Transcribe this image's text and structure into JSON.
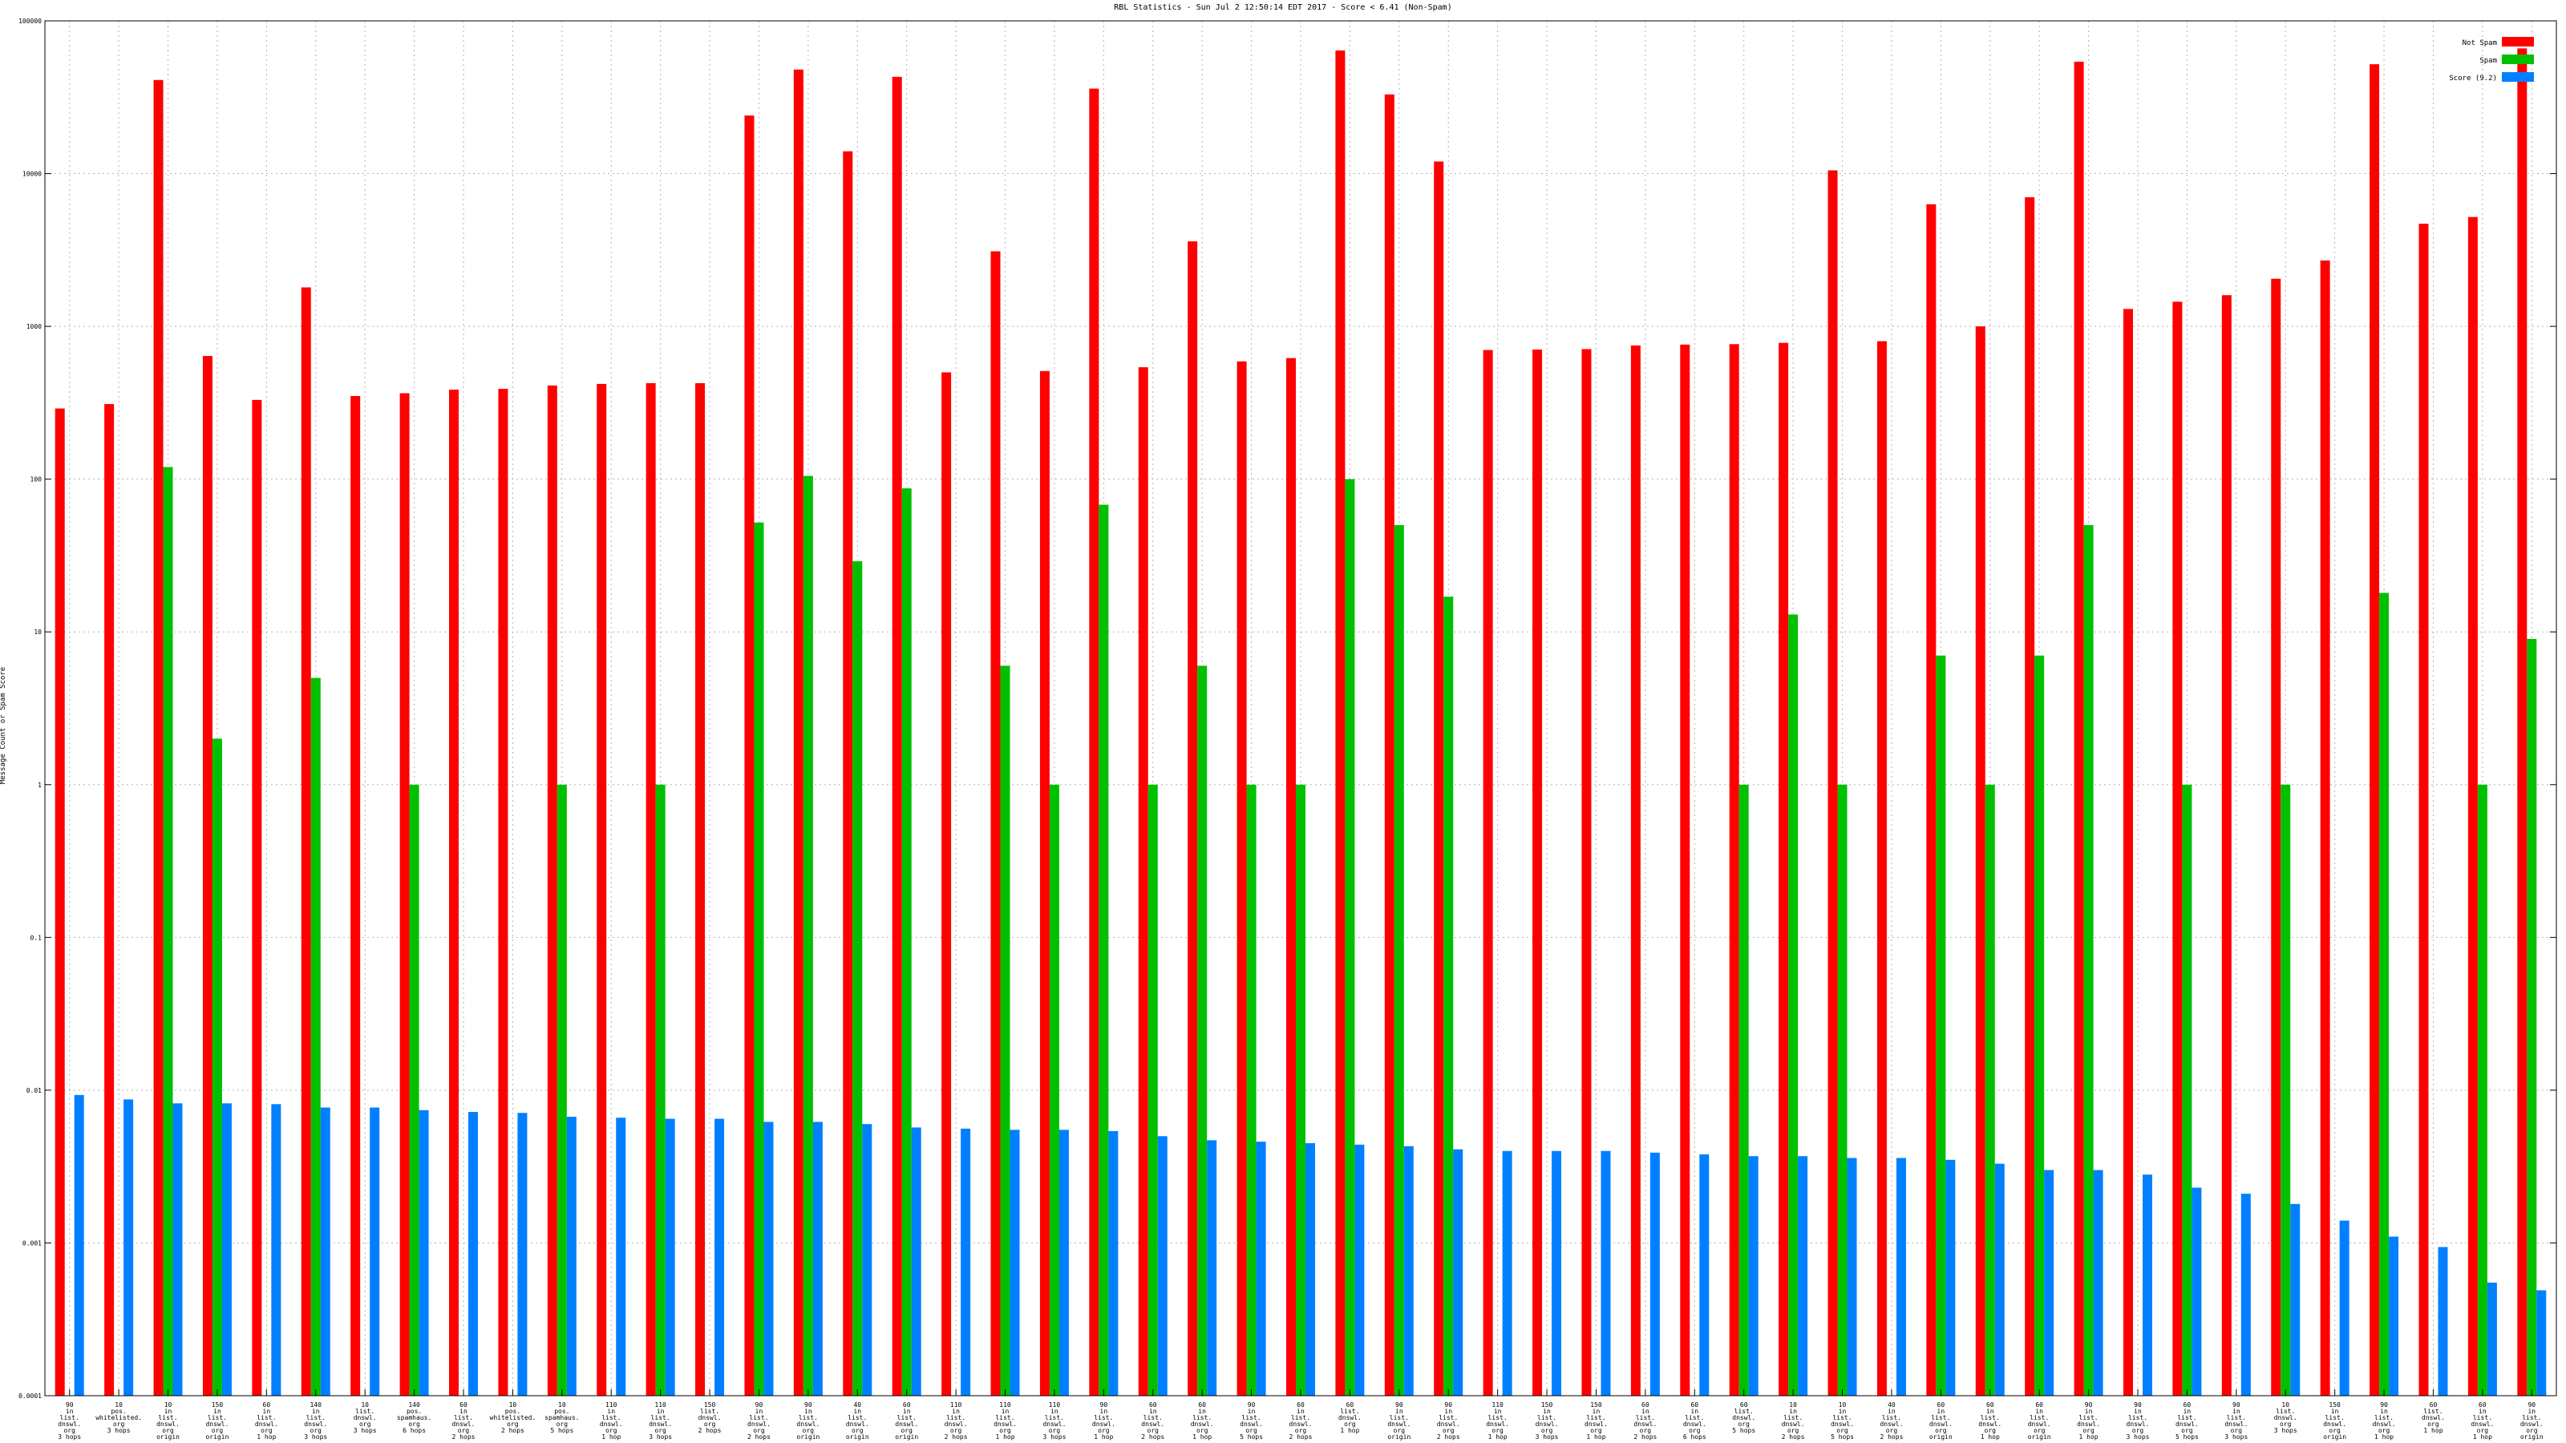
{
  "chart_data": {
    "type": "bar",
    "title": "RBL Statistics - Sun Jul  2 12:50:14 EDT 2017 - Score < 6.41 (Non-Spam)",
    "ylabel": "Message Count or Spam Score",
    "yscale": "log",
    "ylim": [
      0.0001,
      100000
    ],
    "ytick_labels": [
      "0.0001",
      "0.001",
      "0.01",
      "0.1",
      "1",
      "10",
      "100",
      "1000",
      "10000",
      "100000"
    ],
    "grid": true,
    "legend_position": "top-right",
    "categories": [
      [
        "90",
        "in",
        "list.",
        "dnswl.",
        "org",
        "3 hops"
      ],
      [
        "10",
        "pos.",
        "whitelisted.",
        "org",
        "3 hops"
      ],
      [
        "10",
        "in",
        "list.",
        "dnswl.",
        "org",
        "origin"
      ],
      [
        "150",
        "in",
        "list.",
        "dnswl.",
        "org",
        "origin"
      ],
      [
        "60",
        "in",
        "list.",
        "dnswl.",
        "org",
        "1 hop"
      ],
      [
        "140",
        "in",
        "list.",
        "dnswl.",
        "org",
        "3 hops"
      ],
      [
        "10",
        "list.",
        "dnswl.",
        "org",
        "3 hops"
      ],
      [
        "140",
        "pos.",
        "spamhaus.",
        "org",
        "6 hops"
      ],
      [
        "60",
        "in",
        "list.",
        "dnswl.",
        "org",
        "2 hops"
      ],
      [
        "10",
        "pos.",
        "whitelisted.",
        "org",
        "2 hops"
      ],
      [
        "10",
        "pos.",
        "spamhaus.",
        "org",
        "5 hops"
      ],
      [
        "110",
        "in",
        "list.",
        "dnswl.",
        "org",
        "1 hop"
      ],
      [
        "110",
        "in",
        "list.",
        "dnswl.",
        "org",
        "3 hops"
      ],
      [
        "150",
        "list.",
        "dnswl.",
        "org",
        "2 hops"
      ],
      [
        "90",
        "in",
        "list.",
        "dnswl.",
        "org",
        "2 hops"
      ],
      [
        "90",
        "in",
        "list.",
        "dnswl.",
        "org",
        "origin"
      ],
      [
        "40",
        "in",
        "list.",
        "dnswl.",
        "org",
        "origin"
      ],
      [
        "60",
        "in",
        "list.",
        "dnswl.",
        "org",
        "origin"
      ],
      [
        "110",
        "in",
        "list.",
        "dnswl.",
        "org",
        "2 hops"
      ],
      [
        "110",
        "in",
        "list.",
        "dnswl.",
        "org",
        "1 hop"
      ],
      [
        "110",
        "in",
        "list.",
        "dnswl.",
        "org",
        "3 hops"
      ],
      [
        "90",
        "in",
        "list.",
        "dnswl.",
        "org",
        "1 hop"
      ],
      [
        "60",
        "in",
        "list.",
        "dnswl.",
        "org",
        "2 hops"
      ],
      [
        "60",
        "in",
        "list.",
        "dnswl.",
        "org",
        "1 hop"
      ],
      [
        "90",
        "in",
        "list.",
        "dnswl.",
        "org",
        "5 hops"
      ],
      [
        "60",
        "in",
        "list.",
        "dnswl.",
        "org",
        "2 hops"
      ],
      [
        "60",
        "list.",
        "dnswl.",
        "org",
        "1 hop"
      ],
      [
        "90",
        "in",
        "list.",
        "dnswl.",
        "org",
        "origin"
      ],
      [
        "90",
        "in",
        "list.",
        "dnswl.",
        "org",
        "2 hops"
      ],
      [
        "110",
        "in",
        "list.",
        "dnswl.",
        "org",
        "1 hop"
      ],
      [
        "150",
        "in",
        "list.",
        "dnswl.",
        "org",
        "3 hops"
      ],
      [
        "150",
        "in",
        "list.",
        "dnswl.",
        "org",
        "1 hop"
      ],
      [
        "60",
        "in",
        "list.",
        "dnswl.",
        "org",
        "2 hops"
      ],
      [
        "60",
        "in",
        "list.",
        "dnswl.",
        "org",
        "6 hops"
      ],
      [
        "60",
        "list.",
        "dnswl.",
        "org",
        "5 hops"
      ],
      [
        "10",
        "in",
        "list.",
        "dnswl.",
        "org",
        "2 hops"
      ],
      [
        "10",
        "in",
        "list.",
        "dnswl.",
        "org",
        "5 hops"
      ],
      [
        "40",
        "in",
        "list.",
        "dnswl.",
        "org",
        "2 hops"
      ],
      [
        "60",
        "in",
        "list.",
        "dnswl.",
        "org",
        "origin"
      ],
      [
        "60",
        "in",
        "list.",
        "dnswl.",
        "org",
        "1 hop"
      ],
      [
        "60",
        "in",
        "list.",
        "dnswl.",
        "org",
        "origin"
      ],
      [
        "90",
        "in",
        "list.",
        "dnswl.",
        "org",
        "1 hop"
      ],
      [
        "90",
        "in",
        "list.",
        "dnswl.",
        "org",
        "3 hops"
      ],
      [
        "60",
        "in",
        "list.",
        "dnswl.",
        "org",
        "5 hops"
      ],
      [
        "90",
        "in",
        "list.",
        "dnswl.",
        "org",
        "3 hops"
      ],
      [
        "10",
        "list.",
        "dnswl.",
        "org",
        "3 hops"
      ],
      [
        "150",
        "in",
        "list.",
        "dnswl.",
        "org",
        "origin"
      ],
      [
        "90",
        "in",
        "list.",
        "dnswl.",
        "org",
        "1 hop"
      ],
      [
        "60",
        "list.",
        "dnswl.",
        "org",
        "1 hop"
      ],
      [
        "60",
        "in",
        "list.",
        "dnswl.",
        "org",
        "1 hop"
      ],
      [
        "90",
        "in",
        "list.",
        "dnswl.",
        "org",
        "origin"
      ]
    ],
    "series": [
      {
        "name": "Not Spam",
        "color": "#ff0000",
        "values": [
          290,
          310,
          41000,
          640,
          330,
          1800,
          350,
          365,
          385,
          390,
          410,
          420,
          425,
          425,
          24000,
          48000,
          14000,
          43000,
          500,
          3100,
          510,
          36000,
          540,
          3600,
          590,
          620,
          64000,
          33000,
          12000,
          700,
          705,
          710,
          750,
          760,
          765,
          780,
          10500,
          800,
          6300,
          1000,
          7000,
          54000,
          1300,
          1450,
          1600,
          2050,
          2700,
          52000,
          4700,
          5200,
          66000
        ]
      },
      {
        "name": "Spam",
        "color": "#00c000",
        "values": [
          null,
          null,
          120,
          2,
          null,
          5,
          null,
          1,
          null,
          null,
          1,
          null,
          1,
          null,
          52,
          105,
          29,
          87,
          null,
          6,
          1,
          68,
          1,
          6,
          1,
          1,
          100,
          50,
          17,
          null,
          null,
          null,
          null,
          null,
          1,
          13,
          1,
          null,
          7,
          1,
          7,
          50,
          null,
          1,
          null,
          1,
          null,
          18,
          null,
          1,
          9
        ]
      },
      {
        "name": "Score (9.2)",
        "color": "#0080ff",
        "values": [
          0.0093,
          0.0087,
          0.0082,
          0.0082,
          0.0081,
          0.0077,
          0.0077,
          0.0074,
          0.0072,
          0.0071,
          0.0067,
          0.0066,
          0.0065,
          0.0065,
          0.0062,
          0.0062,
          0.006,
          0.0057,
          0.0056,
          0.0055,
          0.0055,
          0.0054,
          0.005,
          0.0047,
          0.0046,
          0.0045,
          0.0044,
          0.0043,
          0.0041,
          0.004,
          0.004,
          0.004,
          0.0039,
          0.0038,
          0.0037,
          0.0037,
          0.0036,
          0.0036,
          0.0035,
          0.0033,
          0.003,
          0.003,
          0.0028,
          0.0023,
          0.0021,
          0.0018,
          0.0014,
          0.0011,
          0.00094,
          0.00055,
          0.00049
        ]
      }
    ]
  }
}
